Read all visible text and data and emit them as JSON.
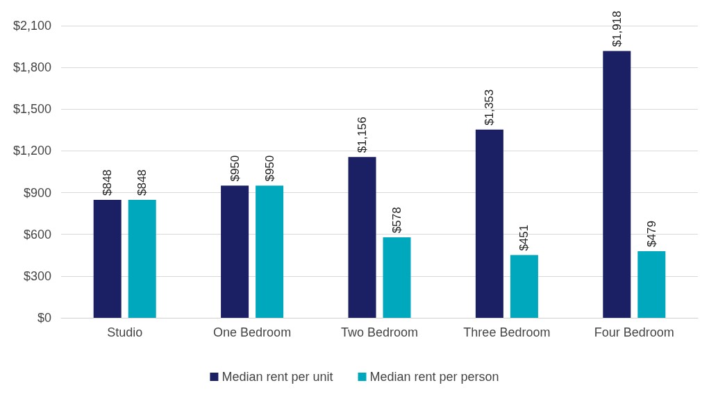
{
  "chart_data": {
    "type": "bar",
    "categories": [
      "Studio",
      "One Bedroom",
      "Two Bedroom",
      "Three Bedroom",
      "Four Bedroom"
    ],
    "series": [
      {
        "name": "Median rent per unit",
        "color": "#1b1f63",
        "values": [
          848,
          950,
          1156,
          1353,
          1918
        ],
        "value_labels": [
          "$848",
          "$950",
          "$1,156",
          "$1,353",
          "$1,918"
        ]
      },
      {
        "name": "Median rent per person",
        "color": "#00a8bd",
        "values": [
          848,
          950,
          578,
          451,
          479
        ],
        "value_labels": [
          "$848",
          "$950",
          "$578",
          "$451",
          "$479"
        ]
      }
    ],
    "ylim": [
      0,
      2100
    ],
    "yticks": [
      {
        "value": 0,
        "label": "$0"
      },
      {
        "value": 300,
        "label": "$300"
      },
      {
        "value": 600,
        "label": "$600"
      },
      {
        "value": 900,
        "label": "$900"
      },
      {
        "value": 1200,
        "label": "$1,200"
      },
      {
        "value": 1500,
        "label": "$1,500"
      },
      {
        "value": 1800,
        "label": "$1,800"
      },
      {
        "value": 2100,
        "label": "$2,100"
      }
    ],
    "grid": "y",
    "legend": "bottom"
  }
}
